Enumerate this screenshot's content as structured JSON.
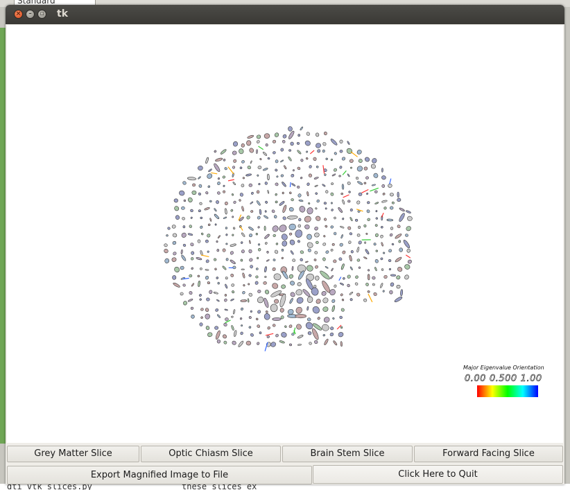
{
  "background": {
    "style_select_value": "Standard",
    "bottom_text_left": "dti_vtk_slices.py",
    "bottom_text_right": "these slices ex"
  },
  "window": {
    "title": "tk",
    "controls": {
      "close_icon": "close-icon",
      "minimize_icon": "minimize-icon",
      "maximize_icon": "maximize-icon"
    }
  },
  "render": {
    "legend": {
      "title": "Major Eigenvalue Orientation",
      "ticks": [
        "0.00",
        "0.500",
        "1.00"
      ],
      "colors": [
        "#ff0000",
        "#ffff00",
        "#00ff00",
        "#00ffff",
        "#0000ff"
      ]
    },
    "glyph_colors": [
      "#9aa0c8",
      "#b8a8c0",
      "#a8c8a8",
      "#c8a8a8",
      "#a0b8d0",
      "#cccccc"
    ]
  },
  "buttons": {
    "grey_matter": "Grey Matter Slice",
    "optic_chiasm": "Optic Chiasm Slice",
    "brain_stem": "Brain Stem Slice",
    "forward_facing": "Forward Facing Slice",
    "export": "Export Magnified Image to File",
    "quit": "Click Here to Quit"
  }
}
